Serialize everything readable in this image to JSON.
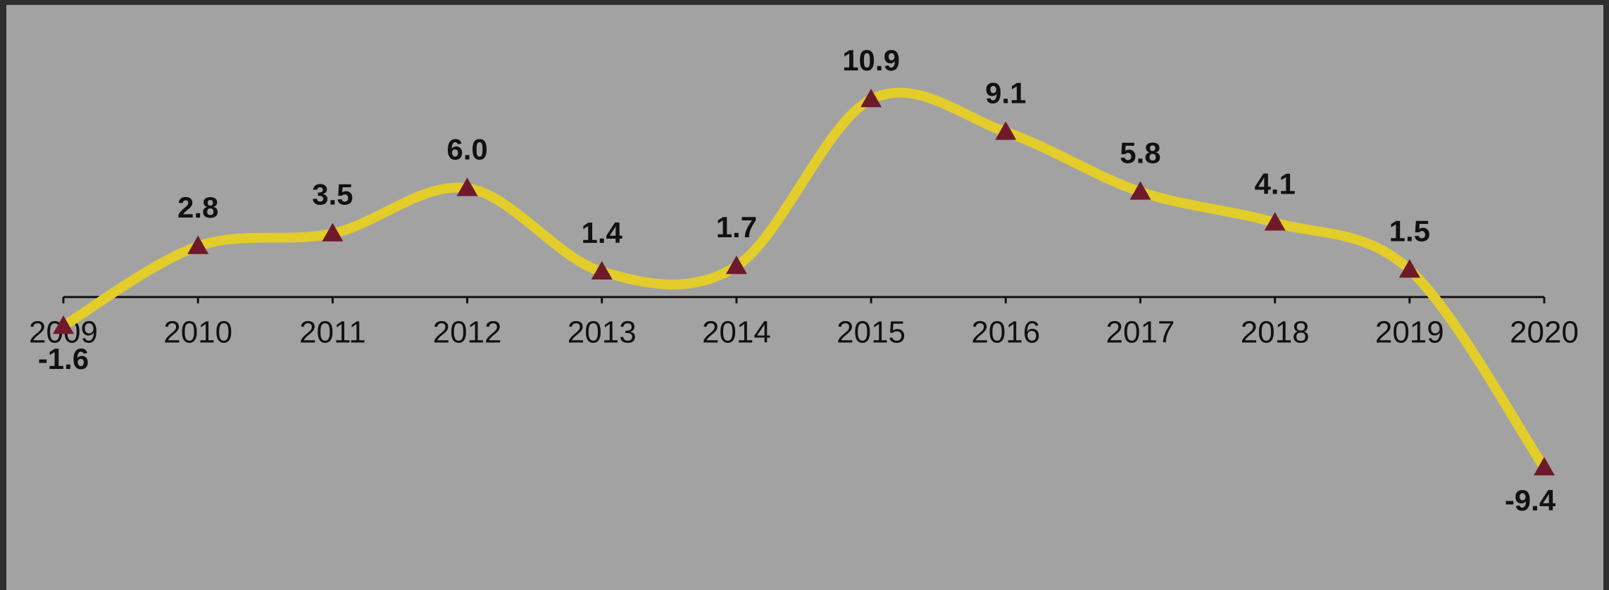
{
  "chart_data": {
    "type": "line",
    "categories": [
      "2009",
      "2010",
      "2011",
      "2012",
      "2013",
      "2014",
      "2015",
      "2016",
      "2017",
      "2018",
      "2019",
      "2020"
    ],
    "series": [
      {
        "color": "#e2cd2b",
        "marker_color": "#6e1a2b",
        "values": [
          -1.6,
          2.8,
          3.5,
          6.0,
          1.4,
          1.7,
          10.9,
          9.1,
          5.8,
          4.1,
          1.5,
          -9.4
        ],
        "value_labels": [
          "-1.6",
          "2.8",
          "3.5",
          "6.0",
          "1.4",
          "1.7",
          "10.9",
          "9.1",
          "5.8",
          "4.1",
          "1.5",
          "-9.4"
        ]
      }
    ]
  }
}
